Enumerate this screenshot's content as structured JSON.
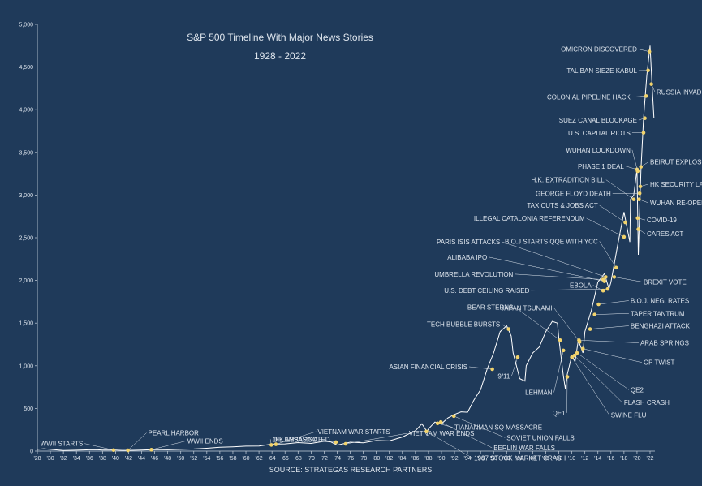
{
  "chart_data": {
    "type": "line",
    "title": "S&P 500 Timeline With Major News Stories",
    "subtitle": "1928 - 2022",
    "source": "SOURCE: STRATEGAS RESEARCH PARTNERS",
    "ylim": [
      0,
      5000
    ],
    "xlim": [
      1928,
      2023
    ],
    "y_ticks": [
      "0",
      "500",
      "1,000",
      "1,500",
      "2,000",
      "2,500",
      "3,000",
      "3,500",
      "4,000",
      "4,500",
      "5,000"
    ],
    "x_ticks": [
      "'28",
      "'30",
      "'32",
      "'34",
      "'36",
      "'38",
      "'40",
      "'42",
      "'44",
      "'46",
      "'48",
      "'50",
      "'52",
      "'54",
      "'56",
      "'58",
      "'60",
      "'62",
      "'64",
      "'66",
      "'68",
      "'70",
      "'72",
      "'74",
      "'76",
      "'78",
      "'80",
      "'82",
      "'84",
      "'86",
      "'88",
      "'90",
      "'92",
      "'94",
      "'96",
      "'98",
      "'00",
      "'02",
      "'04",
      "'06",
      "'08",
      "'10",
      "'12",
      "'14",
      "'16",
      "'18",
      "'20",
      "'22"
    ],
    "series": [
      {
        "values": [
          [
            1928,
            20
          ],
          [
            1929,
            28
          ],
          [
            1930,
            20
          ],
          [
            1932,
            8
          ],
          [
            1934,
            10
          ],
          [
            1936,
            15
          ],
          [
            1937,
            17
          ],
          [
            1938,
            12
          ],
          [
            1940,
            12
          ],
          [
            1941,
            9
          ],
          [
            1942,
            9
          ],
          [
            1944,
            12
          ],
          [
            1946,
            18
          ],
          [
            1948,
            15
          ],
          [
            1950,
            20
          ],
          [
            1952,
            25
          ],
          [
            1954,
            33
          ],
          [
            1956,
            45
          ],
          [
            1958,
            50
          ],
          [
            1960,
            58
          ],
          [
            1962,
            60
          ],
          [
            1964,
            82
          ],
          [
            1966,
            85
          ],
          [
            1968,
            100
          ],
          [
            1970,
            90
          ],
          [
            1972,
            115
          ],
          [
            1973,
            108
          ],
          [
            1974,
            70
          ],
          [
            1976,
            105
          ],
          [
            1978,
            97
          ],
          [
            1980,
            125
          ],
          [
            1982,
            120
          ],
          [
            1984,
            165
          ],
          [
            1986,
            240
          ],
          [
            1987,
            320
          ],
          [
            1987.8,
            225
          ],
          [
            1988,
            260
          ],
          [
            1989,
            340
          ],
          [
            1990,
            320
          ],
          [
            1991,
            390
          ],
          [
            1992,
            430
          ],
          [
            1993,
            460
          ],
          [
            1994,
            455
          ],
          [
            1995,
            600
          ],
          [
            1996,
            720
          ],
          [
            1997,
            960
          ],
          [
            1998,
            1150
          ],
          [
            1999,
            1400
          ],
          [
            2000,
            1470
          ],
          [
            2000.7,
            1350
          ],
          [
            2001,
            1150
          ],
          [
            2002,
            850
          ],
          [
            2002.8,
            820
          ],
          [
            2003,
            1000
          ],
          [
            2004,
            1150
          ],
          [
            2005,
            1220
          ],
          [
            2006,
            1400
          ],
          [
            2007,
            1520
          ],
          [
            2007.8,
            1500
          ],
          [
            2008,
            1320
          ],
          [
            2008.7,
            880
          ],
          [
            2009,
            730
          ],
          [
            2009.3,
            900
          ],
          [
            2010,
            1120
          ],
          [
            2010.5,
            1050
          ],
          [
            2011,
            1300
          ],
          [
            2011.7,
            1150
          ],
          [
            2012,
            1400
          ],
          [
            2013,
            1650
          ],
          [
            2014,
            1980
          ],
          [
            2015,
            2080
          ],
          [
            2015.7,
            1900
          ],
          [
            2016,
            1980
          ],
          [
            2017,
            2400
          ],
          [
            2018,
            2800
          ],
          [
            2018.9,
            2450
          ],
          [
            2019,
            2950
          ],
          [
            2019.5,
            3000
          ],
          [
            2020,
            3300
          ],
          [
            2020.2,
            2300
          ],
          [
            2020.6,
            3300
          ],
          [
            2021,
            3900
          ],
          [
            2021.5,
            4400
          ],
          [
            2022,
            4750
          ],
          [
            2022.3,
            4300
          ],
          [
            2022.6,
            3900
          ]
        ]
      }
    ],
    "events": [
      {
        "label": "WWII STARTS",
        "x": 1939.7,
        "y": 12,
        "tx": 1935,
        "ty": 60
      },
      {
        "label": "PEARL HARBOR",
        "x": 1941.9,
        "y": 9,
        "tx": 1945,
        "ty": 185
      },
      {
        "label": "WWII ENDS",
        "x": 1945.5,
        "y": 16,
        "tx": 1951,
        "ty": 90
      },
      {
        "label": "JFK ASSASINATED",
        "x": 1963.9,
        "y": 72,
        "tx": 1964,
        "ty": 110
      },
      {
        "label": "VIETNAM WAR STARTS",
        "x": 1964.6,
        "y": 80,
        "tx": 1971,
        "ty": 200
      },
      {
        "label": "OIL EMBARGO",
        "x": 1973.8,
        "y": 105,
        "tx": 1971,
        "ty": 110
      },
      {
        "label": "VIETNAM WAR ENDS",
        "x": 1975.3,
        "y": 85,
        "tx": 1985,
        "ty": 180
      },
      {
        "label": "TIANANMAN SQ MASSACRE",
        "x": 1989.4,
        "y": 325,
        "tx": 1992,
        "ty": 250
      },
      {
        "label": "SOVIET UNION FALLS",
        "x": 1991.9,
        "y": 410,
        "tx": 2000,
        "ty": 130
      },
      {
        "label": "BERLIN WAR FALLS",
        "x": 1989.9,
        "y": 340,
        "tx": 1998,
        "ty": 10
      },
      {
        "label": "1987 STOCK MARKET CRASH",
        "x": 1987.7,
        "y": 230,
        "tx": 1995,
        "ty": -110
      },
      {
        "label": "ASIAN FINANCIAL CRISIS",
        "x": 1997.8,
        "y": 960,
        "tx": 1994,
        "ty": 960
      },
      {
        "label": "TECH BUBBLE BURSTS",
        "x": 2000.3,
        "y": 1430,
        "tx": 1999,
        "ty": 1460
      },
      {
        "label": "9/11",
        "x": 2001.7,
        "y": 1100,
        "tx": 2000.5,
        "ty": 850
      },
      {
        "label": "BEAR STERNS",
        "x": 2008.2,
        "y": 1300,
        "tx": 2001,
        "ty": 1660
      },
      {
        "label": "JAPAN TSUNAMI",
        "x": 2011.2,
        "y": 1280,
        "tx": 2007,
        "ty": 1650
      },
      {
        "label": "LEHMAN",
        "x": 2008.7,
        "y": 1180,
        "tx": 2007,
        "ty": 660
      },
      {
        "label": "QE1",
        "x": 2009.3,
        "y": 870,
        "tx": 2009,
        "ty": 420
      },
      {
        "label": "SWINE FLU",
        "x": 2010,
        "y": 1100,
        "tx": 2016,
        "ty": 395
      },
      {
        "label": "FLASH CRASH",
        "x": 2010.4,
        "y": 1120,
        "tx": 2018,
        "ty": 540
      },
      {
        "label": "QE2",
        "x": 2010.8,
        "y": 1150,
        "tx": 2019,
        "ty": 690
      },
      {
        "label": "OP TWIST",
        "x": 2011.7,
        "y": 1200,
        "tx": 2021,
        "ty": 1010
      },
      {
        "label": "ARAB SPRINGS",
        "x": 2011.1,
        "y": 1300,
        "tx": 2020.5,
        "ty": 1240
      },
      {
        "label": "BENGHAZI ATTACK",
        "x": 2012.8,
        "y": 1430,
        "tx": 2019,
        "ty": 1440
      },
      {
        "label": "TAPER TANTRUM",
        "x": 2013.5,
        "y": 1600,
        "tx": 2019,
        "ty": 1585
      },
      {
        "label": "B.O.J. NEG. RATES",
        "x": 2014.1,
        "y": 1720,
        "tx": 2019,
        "ty": 1735
      },
      {
        "label": "U.S. DEBT CEILING RAISED",
        "x": 2015.5,
        "y": 1900,
        "tx": 2003.5,
        "ty": 1855
      },
      {
        "label": "EBOLA",
        "x": 2014.8,
        "y": 1880,
        "tx": 2013,
        "ty": 1915
      },
      {
        "label": "BREXIT VOTE",
        "x": 2016.5,
        "y": 2040,
        "tx": 2021,
        "ty": 1955
      },
      {
        "label": "UMBRELLA REVOLUTION",
        "x": 2014.8,
        "y": 2010,
        "tx": 2001,
        "ty": 2045
      },
      {
        "label": "ALIBABA IPO",
        "x": 2015,
        "y": 1990,
        "tx": 1997,
        "ty": 2245
      },
      {
        "label": "PARIS ISIS ATTACKS",
        "x": 2015.2,
        "y": 2040,
        "tx": 1999,
        "ty": 2425
      },
      {
        "label": "B.O.J STARTS QQE WITH YCC",
        "x": 2016.8,
        "y": 2150,
        "tx": 2014,
        "ty": 2430
      },
      {
        "label": "ILLEGAL CATALONIA REFERENDUM",
        "x": 2018,
        "y": 2510,
        "tx": 2012,
        "ty": 2700
      },
      {
        "label": "TAX CUTS & JOBS ACT",
        "x": 2018.2,
        "y": 2680,
        "tx": 2014,
        "ty": 2850
      },
      {
        "label": "CARES ACT",
        "x": 2020.2,
        "y": 2600,
        "tx": 2021.5,
        "ty": 2520
      },
      {
        "label": "COVID-19",
        "x": 2020.1,
        "y": 2730,
        "tx": 2021.5,
        "ty": 2680
      },
      {
        "label": "GEORGE FLOYD DEATH",
        "x": 2020.4,
        "y": 3020,
        "tx": 2016,
        "ty": 2990
      },
      {
        "label": "H.K. EXTRADITION BILL",
        "x": 2019.5,
        "y": 2950,
        "tx": 2015,
        "ty": 3150
      },
      {
        "label": "PHASE 1 DEAL",
        "x": 2020,
        "y": 3300,
        "tx": 2018,
        "ty": 3310
      },
      {
        "label": "WUHAN LOCKDOWN",
        "x": 2020.1,
        "y": 3280,
        "tx": 2019,
        "ty": 3500
      },
      {
        "label": "U.S. CAPITAL RIOTS",
        "x": 2021,
        "y": 3730,
        "tx": 2019,
        "ty": 3700
      },
      {
        "label": "SUEZ CANAL BLOCKAGE",
        "x": 2021.2,
        "y": 3900,
        "tx": 2020,
        "ty": 3850
      },
      {
        "label": "COLONIAL PIPELINE HACK",
        "x": 2021.4,
        "y": 4160,
        "tx": 2019,
        "ty": 4120
      },
      {
        "label": "TALIBAN SIEZE KABUL",
        "x": 2021.7,
        "y": 4460,
        "tx": 2020,
        "ty": 4430
      },
      {
        "label": "OMICRON DISCOVERED",
        "x": 2021.9,
        "y": 4680,
        "tx": 2020,
        "ty": 4680
      },
      {
        "label": "RUSSIA INVADES UKRAINE",
        "x": 2022.2,
        "y": 4300,
        "tx": 2023,
        "ty": 4180
      },
      {
        "label": "BEIRUT EXPLOSION",
        "x": 2020.6,
        "y": 3330,
        "tx": 2022,
        "ty": 3360
      },
      {
        "label": "HK SECURITY LAW",
        "x": 2020.5,
        "y": 3100,
        "tx": 2022,
        "ty": 3100
      },
      {
        "label": "WUHAN RE-OPENS",
        "x": 2020.3,
        "y": 2950,
        "tx": 2022,
        "ty": 2880
      }
    ]
  },
  "colors": {
    "background": "#1f3a5a",
    "line": "#ffffff",
    "marker": "#f2d36c",
    "text": "#dfe6ee",
    "axis": "#c9d3de"
  }
}
